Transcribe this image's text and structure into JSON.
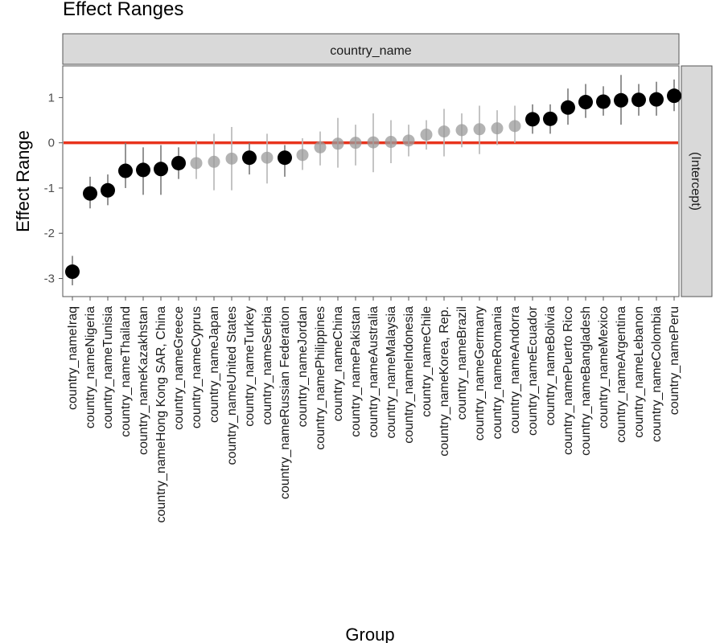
{
  "chart_data": {
    "type": "scatter",
    "title": "Effect Ranges",
    "xlabel": "Group",
    "ylabel": "Effect Range",
    "facet_column_label": "country_name",
    "facet_row_label": "(Intercept)",
    "ylim": [
      -3.4,
      1.7
    ],
    "y_ticks": [
      1,
      0,
      -1,
      -2,
      -3
    ],
    "reference_line": {
      "y": 0,
      "color": "#e8331c"
    },
    "colors": {
      "significant": "#000000",
      "nonsignificant": "#9a9a9a",
      "interval": "#b5b5b5",
      "strip_fill": "#d9d9d9"
    },
    "grid": false,
    "categories": [
      "country_nameIraq",
      "country_nameNigeria",
      "country_nameTunisia",
      "country_nameThailand",
      "country_nameKazakhstan",
      "country_nameHong Kong SAR, China",
      "country_nameGreece",
      "country_nameCyprus",
      "country_nameJapan",
      "country_nameUnited States",
      "country_nameTurkey",
      "country_nameSerbia",
      "country_nameRussian Federation",
      "country_nameJordan",
      "country_namePhilippines",
      "country_nameChina",
      "country_namePakistan",
      "country_nameAustralia",
      "country_nameMalaysia",
      "country_nameIndonesia",
      "country_nameChile",
      "country_nameKorea, Rep.",
      "country_nameBrazil",
      "country_nameGermany",
      "country_nameRomania",
      "country_nameAndorra",
      "country_nameEcuador",
      "country_nameBolivia",
      "country_namePuerto Rico",
      "country_nameBangladesh",
      "country_nameMexico",
      "country_nameArgentina",
      "country_nameLebanon",
      "country_nameColombia",
      "country_namePeru"
    ],
    "series": [
      {
        "values": [
          -2.85,
          -1.12,
          -1.05,
          -0.62,
          -0.6,
          -0.58,
          -0.45,
          -0.45,
          -0.42,
          -0.35,
          -0.33,
          -0.33,
          -0.33,
          -0.27,
          -0.1,
          -0.02,
          0.0,
          0.01,
          0.02,
          0.05,
          0.18,
          0.25,
          0.28,
          0.3,
          0.32,
          0.37,
          0.52,
          0.53,
          0.78,
          0.9,
          0.91,
          0.94,
          0.95,
          0.96,
          1.04
        ],
        "lower": [
          -3.15,
          -1.45,
          -1.38,
          -1.0,
          -1.15,
          -1.15,
          -0.8,
          -0.8,
          -1.05,
          -1.05,
          -0.7,
          -0.9,
          -0.75,
          -0.6,
          -0.5,
          -0.55,
          -0.5,
          -0.65,
          -0.45,
          -0.3,
          -0.15,
          -0.3,
          -0.1,
          -0.25,
          -0.05,
          0.0,
          0.2,
          0.2,
          0.4,
          0.55,
          0.6,
          0.4,
          0.6,
          0.6,
          0.7
        ],
        "upper": [
          -2.5,
          -0.75,
          -0.7,
          0.0,
          -0.1,
          -0.05,
          -0.1,
          0.05,
          0.2,
          0.35,
          -0.0,
          0.2,
          -0.05,
          0.1,
          0.25,
          0.55,
          0.4,
          0.65,
          0.5,
          0.4,
          0.5,
          0.75,
          0.65,
          0.82,
          0.72,
          0.82,
          0.85,
          0.85,
          1.2,
          1.3,
          1.25,
          1.5,
          1.3,
          1.35,
          1.4
        ],
        "significant": [
          true,
          true,
          true,
          true,
          true,
          true,
          true,
          false,
          false,
          false,
          true,
          false,
          true,
          false,
          false,
          false,
          false,
          false,
          false,
          false,
          false,
          false,
          false,
          false,
          false,
          false,
          true,
          true,
          true,
          true,
          true,
          true,
          true,
          true,
          true
        ]
      }
    ]
  }
}
